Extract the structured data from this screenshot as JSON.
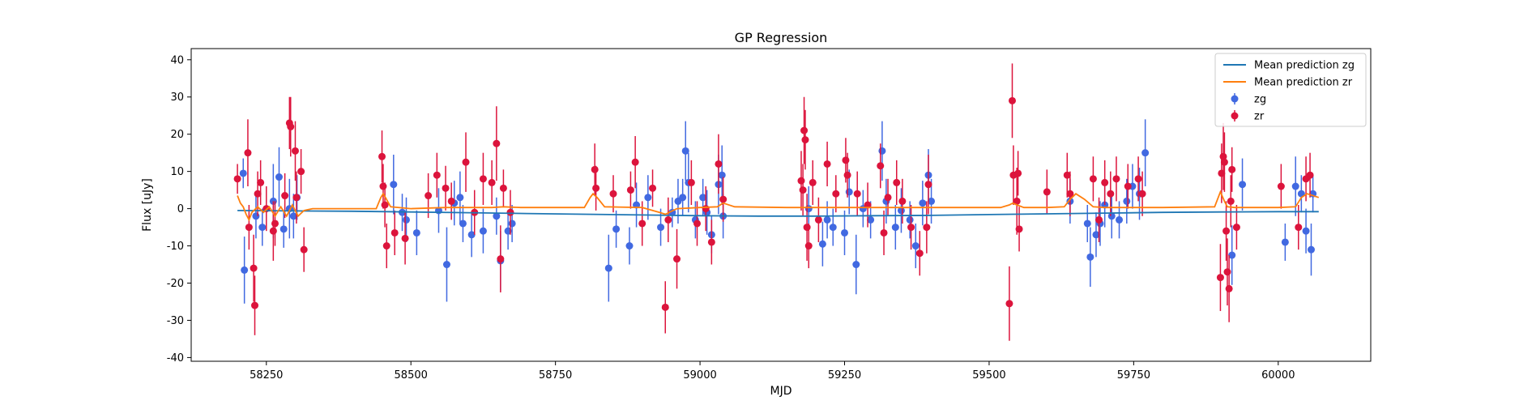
{
  "chart_data": {
    "type": "scatter",
    "title": "GP Regression",
    "xlabel": "MJD",
    "ylabel": "Flux [uJy]",
    "xlim": [
      58120,
      60160
    ],
    "ylim": [
      -41,
      43
    ],
    "xticks": [
      58250,
      58500,
      58750,
      59000,
      59250,
      59500,
      59750,
      60000
    ],
    "yticks": [
      -40,
      -30,
      -20,
      -10,
      0,
      10,
      20,
      30,
      40
    ],
    "legend_position": "top-right",
    "colors": {
      "zg": "#4169e1",
      "zr": "#dc143c",
      "mean_zg": "#1f77b4",
      "mean_zr": "#ff7f0e"
    },
    "legend": [
      {
        "label": "Mean prediction zg",
        "kind": "line",
        "color": "#1f77b4"
      },
      {
        "label": "Mean prediction zr",
        "kind": "line",
        "color": "#ff7f0e"
      },
      {
        "label": "zg",
        "kind": "errorbar",
        "color": "#4169e1"
      },
      {
        "label": "zr",
        "kind": "errorbar",
        "color": "#dc143c"
      }
    ],
    "mean_zg": {
      "x": [
        58200,
        58300,
        58400,
        58500,
        58600,
        58700,
        58800,
        58900,
        59000,
        59100,
        59200,
        59300,
        59400,
        59500,
        59600,
        59700,
        59800,
        59900,
        60000,
        60070
      ],
      "y": [
        -0.5,
        -0.6,
        -0.7,
        -0.9,
        -1.1,
        -1.3,
        -1.5,
        -1.7,
        -1.9,
        -2.0,
        -2.0,
        -1.9,
        -1.8,
        -1.6,
        -1.4,
        -1.2,
        -1.0,
        -0.9,
        -0.8,
        -0.8
      ]
    },
    "mean_zr": {
      "x": [
        58200,
        58205,
        58210,
        58215,
        58220,
        58225,
        58235,
        58245,
        58255,
        58265,
        58275,
        58285,
        58295,
        58305,
        58315,
        58330,
        58400,
        58440,
        58448,
        58452,
        58456,
        58465,
        58500,
        58560,
        58640,
        58660,
        58690,
        58800,
        58810,
        58815,
        58822,
        58835,
        58900,
        58930,
        58940,
        58960,
        59000,
        59030,
        59040,
        59060,
        59150,
        59250,
        59350,
        59450,
        59520,
        59535,
        59541,
        59548,
        59560,
        59600,
        59630,
        59640,
        59650,
        59665,
        59680,
        59700,
        59760,
        59800,
        59890,
        59900,
        59907,
        59912,
        59925,
        59945,
        60000,
        60030,
        60040,
        60050,
        60070
      ],
      "y": [
        3.5,
        1.5,
        0.5,
        -1.5,
        -3.0,
        -1.0,
        0.5,
        -1.0,
        0.5,
        -2.0,
        0.5,
        -2.0,
        1.0,
        -2.0,
        -0.5,
        0.0,
        0.0,
        0.0,
        3.0,
        4.0,
        3.0,
        0.5,
        0.0,
        0.3,
        0.3,
        0.5,
        0.3,
        0.3,
        3.0,
        4.0,
        3.0,
        0.5,
        0.3,
        -1.0,
        -1.5,
        0.0,
        0.3,
        0.5,
        1.5,
        0.5,
        0.3,
        0.3,
        0.3,
        0.3,
        0.3,
        1.0,
        1.5,
        1.0,
        0.3,
        0.3,
        0.5,
        2.5,
        4.0,
        2.5,
        0.5,
        0.3,
        0.3,
        0.3,
        0.5,
        4.5,
        2.0,
        0.5,
        0.3,
        0.3,
        0.3,
        0.5,
        3.0,
        4.0,
        3.0
      ]
    },
    "zg": [
      [
        58210,
        9.5,
        4
      ],
      [
        58212,
        -16.5,
        9
      ],
      [
        58232,
        -2,
        6
      ],
      [
        58243,
        -5,
        5
      ],
      [
        58262,
        2,
        10
      ],
      [
        58272,
        8.5,
        8
      ],
      [
        58280,
        -5.5,
        5
      ],
      [
        58290,
        0,
        8
      ],
      [
        58297,
        -2,
        6
      ],
      [
        58303,
        3,
        6
      ],
      [
        58470,
        6.5,
        8
      ],
      [
        58485,
        -1,
        5
      ],
      [
        58492,
        -3,
        6
      ],
      [
        58510,
        -6.5,
        6
      ],
      [
        58548,
        -0.5,
        6
      ],
      [
        58562,
        -15,
        10
      ],
      [
        58575,
        1.5,
        6
      ],
      [
        58585,
        3,
        7
      ],
      [
        58590,
        -4,
        5
      ],
      [
        58605,
        -7,
        6
      ],
      [
        58625,
        -6,
        6
      ],
      [
        58648,
        -2,
        5
      ],
      [
        58655,
        -14,
        8
      ],
      [
        58668,
        -6,
        5
      ],
      [
        58675,
        -4,
        5
      ],
      [
        58842,
        -16,
        9
      ],
      [
        58855,
        -5.5,
        5
      ],
      [
        58878,
        -10,
        5
      ],
      [
        58890,
        1,
        6
      ],
      [
        58910,
        3,
        6
      ],
      [
        58932,
        -5,
        5
      ],
      [
        58952,
        -1,
        4
      ],
      [
        58962,
        2,
        6
      ],
      [
        58970,
        3,
        5
      ],
      [
        58975,
        15.5,
        8
      ],
      [
        58980,
        7,
        8
      ],
      [
        58992,
        -3,
        5
      ],
      [
        59005,
        3,
        5
      ],
      [
        59012,
        -1,
        6
      ],
      [
        59020,
        -7,
        5
      ],
      [
        59032,
        6.5,
        8
      ],
      [
        59038,
        9,
        8
      ],
      [
        59040,
        -2,
        6
      ],
      [
        59188,
        0,
        6
      ],
      [
        59212,
        -9.5,
        6
      ],
      [
        59220,
        -3,
        5
      ],
      [
        59230,
        -5,
        5
      ],
      [
        59250,
        -6.5,
        6
      ],
      [
        59258,
        4.5,
        6
      ],
      [
        59270,
        -15,
        8
      ],
      [
        59282,
        0,
        5
      ],
      [
        59295,
        -3,
        5
      ],
      [
        59315,
        15.5,
        8
      ],
      [
        59322,
        2,
        6
      ],
      [
        59338,
        -5,
        6
      ],
      [
        59348,
        -0.5,
        6
      ],
      [
        59363,
        -3,
        5
      ],
      [
        59373,
        -10,
        6
      ],
      [
        59385,
        1.5,
        6
      ],
      [
        59395,
        9,
        7
      ],
      [
        59400,
        2,
        6
      ],
      [
        59640,
        2,
        6
      ],
      [
        59670,
        -4,
        5
      ],
      [
        59675,
        -13,
        8
      ],
      [
        59685,
        -7,
        6
      ],
      [
        59692,
        -4,
        6
      ],
      [
        59700,
        1,
        6
      ],
      [
        59712,
        -2,
        6
      ],
      [
        59725,
        -3,
        5
      ],
      [
        59738,
        2,
        6
      ],
      [
        59748,
        6,
        6
      ],
      [
        59760,
        4,
        7
      ],
      [
        59770,
        15,
        9
      ],
      [
        59920,
        -12.5,
        8
      ],
      [
        59938,
        6.5,
        7
      ],
      [
        60012,
        -9,
        5
      ],
      [
        60030,
        6,
        8
      ],
      [
        60040,
        4,
        5
      ],
      [
        60048,
        -6,
        6
      ],
      [
        60057,
        -11,
        7
      ],
      [
        60060,
        4,
        5
      ]
    ],
    "zr": [
      [
        58200,
        8,
        4
      ],
      [
        58218,
        15,
        9
      ],
      [
        58220,
        -5,
        6
      ],
      [
        58228,
        -16,
        9
      ],
      [
        58230,
        -26,
        8
      ],
      [
        58235,
        4,
        6
      ],
      [
        58240,
        7,
        6
      ],
      [
        58250,
        0,
        6
      ],
      [
        58262,
        -6,
        8
      ],
      [
        58265,
        -4,
        6
      ],
      [
        58282,
        3.5,
        6
      ],
      [
        58290,
        23,
        7
      ],
      [
        58292,
        22,
        8
      ],
      [
        58300,
        15.5,
        8
      ],
      [
        58302,
        3,
        7
      ],
      [
        58310,
        10,
        6
      ],
      [
        58315,
        -11,
        6
      ],
      [
        58450,
        14,
        7
      ],
      [
        58452,
        6,
        6
      ],
      [
        58455,
        1,
        6
      ],
      [
        58458,
        -10,
        6
      ],
      [
        58472,
        -6.5,
        6
      ],
      [
        58490,
        -8,
        7
      ],
      [
        58530,
        3.5,
        6
      ],
      [
        58545,
        9,
        6
      ],
      [
        58560,
        5.5,
        6
      ],
      [
        58570,
        2,
        5
      ],
      [
        58595,
        12.5,
        8
      ],
      [
        58610,
        -1,
        6
      ],
      [
        58625,
        8,
        7
      ],
      [
        58640,
        7,
        6
      ],
      [
        58648,
        17.5,
        10
      ],
      [
        58655,
        -13.5,
        9
      ],
      [
        58660,
        5.5,
        5
      ],
      [
        58672,
        -1,
        6
      ],
      [
        58818,
        10.5,
        7
      ],
      [
        58820,
        5.5,
        6
      ],
      [
        58850,
        4,
        5
      ],
      [
        58880,
        5,
        5
      ],
      [
        58888,
        12.5,
        7
      ],
      [
        58900,
        -4,
        6
      ],
      [
        58918,
        5.5,
        5
      ],
      [
        58940,
        -26.5,
        7
      ],
      [
        58945,
        -3,
        6
      ],
      [
        58960,
        -13.5,
        8
      ],
      [
        58985,
        7,
        6
      ],
      [
        58995,
        -4,
        6
      ],
      [
        59010,
        0,
        6
      ],
      [
        59020,
        -9,
        6
      ],
      [
        59032,
        12,
        8
      ],
      [
        59040,
        2.5,
        6
      ],
      [
        59175,
        7.5,
        8
      ],
      [
        59178,
        5,
        7
      ],
      [
        59180,
        21,
        9
      ],
      [
        59182,
        18.5,
        8
      ],
      [
        59185,
        -5,
        9
      ],
      [
        59188,
        -10,
        6
      ],
      [
        59195,
        7,
        6
      ],
      [
        59205,
        -3,
        6
      ],
      [
        59220,
        12,
        6
      ],
      [
        59235,
        4,
        5
      ],
      [
        59252,
        13,
        6
      ],
      [
        59255,
        9,
        6
      ],
      [
        59272,
        4,
        6
      ],
      [
        59290,
        1,
        6
      ],
      [
        59312,
        11.5,
        6
      ],
      [
        59318,
        -6.5,
        6
      ],
      [
        59325,
        3,
        5
      ],
      [
        59340,
        7,
        6
      ],
      [
        59350,
        2,
        6
      ],
      [
        59365,
        -5,
        6
      ],
      [
        59380,
        -12,
        6
      ],
      [
        59392,
        -5,
        7
      ],
      [
        59395,
        6.5,
        8
      ],
      [
        59535,
        -25.5,
        10
      ],
      [
        59540,
        29,
        10
      ],
      [
        59542,
        9,
        8
      ],
      [
        59548,
        2,
        9
      ],
      [
        59550,
        9.5,
        6
      ],
      [
        59552,
        -5.5,
        6
      ],
      [
        59600,
        4.5,
        6
      ],
      [
        59635,
        9,
        6
      ],
      [
        59640,
        4,
        6
      ],
      [
        59680,
        8,
        6
      ],
      [
        59690,
        -3,
        6
      ],
      [
        59700,
        7,
        6
      ],
      [
        59710,
        4,
        6
      ],
      [
        59720,
        8,
        6
      ],
      [
        59740,
        6,
        6
      ],
      [
        59758,
        8,
        6
      ],
      [
        59765,
        4,
        6
      ],
      [
        59900,
        -18.5,
        9
      ],
      [
        59902,
        9.5,
        8
      ],
      [
        59905,
        14,
        9
      ],
      [
        59907,
        12.5,
        8
      ],
      [
        59910,
        -6,
        8
      ],
      [
        59912,
        -17,
        9
      ],
      [
        59915,
        -21.5,
        9
      ],
      [
        59918,
        2,
        7
      ],
      [
        59920,
        10.5,
        6
      ],
      [
        59928,
        -5,
        6
      ],
      [
        60005,
        6,
        6
      ],
      [
        60035,
        -5,
        6
      ],
      [
        60048,
        8,
        6
      ],
      [
        60055,
        9,
        6
      ]
    ]
  }
}
